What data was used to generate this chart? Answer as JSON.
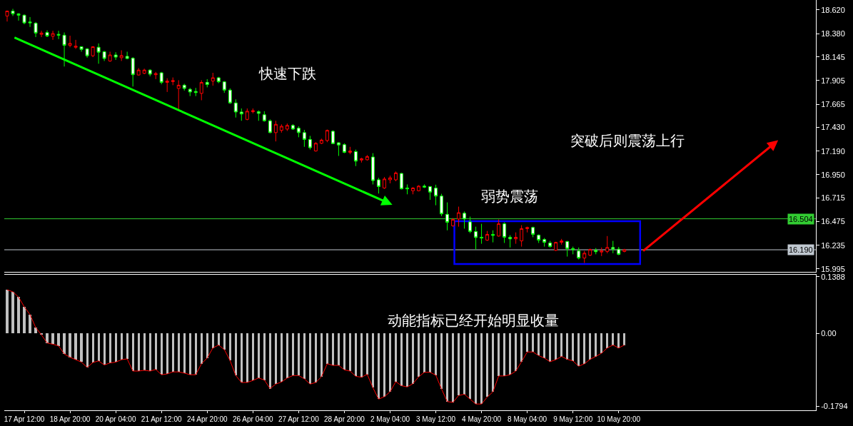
{
  "chart_data": [
    {
      "type": "candlestick",
      "categories": [
        null,
        null,
        null,
        null,
        null,
        null,
        null,
        null,
        null,
        null,
        null,
        null,
        null,
        null,
        null,
        null,
        null,
        null,
        null,
        null,
        null,
        null,
        null,
        null,
        null,
        null,
        null,
        null,
        null,
        null,
        null,
        null,
        null,
        null,
        null,
        null,
        null,
        null,
        null,
        null,
        null,
        null,
        null,
        null,
        null,
        null,
        null,
        null,
        null,
        null,
        null,
        null,
        null,
        null,
        null,
        null,
        null,
        null,
        null,
        null,
        null,
        null,
        null,
        null,
        null,
        null,
        null,
        null,
        null,
        null,
        null,
        null,
        null,
        null,
        null,
        null,
        null,
        null,
        null,
        null,
        null,
        null,
        null,
        null,
        null,
        null,
        null,
        null,
        null,
        null,
        null,
        null,
        null,
        null,
        null,
        null,
        null,
        null,
        null,
        null,
        null,
        null,
        null,
        null,
        null,
        null,
        null,
        null,
        null,
        null,
        null,
        null,
        null,
        null,
        null,
        null,
        null,
        null,
        null,
        null,
        null,
        null,
        null,
        null,
        null,
        null,
        null,
        null,
        null,
        null,
        null,
        null,
        null,
        null,
        null,
        null,
        null,
        null,
        null,
        null,
        null,
        null
      ],
      "ohlc": [
        [
          18.559,
          18.614,
          18.503,
          18.609
        ],
        [
          18.609,
          18.631,
          18.559,
          18.581
        ],
        [
          18.581,
          18.587,
          18.512,
          18.567
        ],
        [
          18.567,
          18.575,
          18.475,
          18.489
        ],
        [
          18.498,
          18.548,
          18.448,
          18.489
        ],
        [
          18.486,
          18.498,
          18.345,
          18.386
        ],
        [
          18.373,
          18.409,
          18.345,
          18.386
        ],
        [
          18.392,
          18.414,
          18.345,
          18.356
        ],
        [
          18.353,
          18.409,
          18.317,
          18.381
        ],
        [
          18.373,
          18.409,
          18.325,
          18.364
        ],
        [
          18.364,
          18.392,
          18.047,
          18.261
        ],
        [
          18.261,
          18.359,
          18.242,
          18.281
        ],
        [
          18.242,
          18.317,
          18.225,
          18.253
        ],
        [
          18.247,
          18.253,
          18.197,
          18.22
        ],
        [
          18.225,
          18.234,
          18.136,
          18.156
        ],
        [
          18.156,
          18.253,
          18.142,
          18.247
        ],
        [
          18.242,
          18.281,
          18.075,
          18.192
        ],
        [
          18.197,
          18.206,
          18.103,
          18.128
        ],
        [
          18.103,
          18.197,
          18.095,
          18.164
        ],
        [
          18.164,
          18.192,
          18.114,
          18.142
        ],
        [
          18.136,
          18.211,
          18.103,
          18.158
        ],
        [
          18.15,
          18.197,
          18.122,
          18.128
        ],
        [
          18.131,
          18.142,
          17.844,
          17.964
        ],
        [
          17.961,
          18.031,
          17.956,
          18.011
        ],
        [
          17.978,
          18.025,
          17.969,
          18.011
        ],
        [
          18.011,
          18.019,
          17.947,
          17.969
        ],
        [
          17.964,
          17.992,
          17.919,
          17.975
        ],
        [
          17.983,
          17.992,
          17.867,
          17.886
        ],
        [
          17.886,
          17.928,
          17.789,
          17.9
        ],
        [
          17.894,
          17.936,
          17.858,
          17.905
        ],
        [
          17.825,
          17.908,
          17.608,
          17.858
        ],
        [
          17.858,
          17.872,
          17.803,
          17.825
        ],
        [
          17.816,
          17.83,
          17.747,
          17.789
        ],
        [
          17.794,
          17.83,
          17.747,
          17.783
        ],
        [
          17.775,
          17.908,
          17.705,
          17.886
        ],
        [
          17.886,
          17.919,
          17.836,
          17.864
        ],
        [
          17.9,
          17.983,
          17.853,
          17.933
        ],
        [
          17.933,
          17.942,
          17.878,
          17.892
        ],
        [
          17.892,
          17.9,
          17.78,
          17.808
        ],
        [
          17.808,
          17.825,
          17.669,
          17.678
        ],
        [
          17.678,
          17.714,
          17.53,
          17.586
        ],
        [
          17.586,
          17.622,
          17.497,
          17.566
        ],
        [
          17.511,
          17.622,
          17.502,
          17.594
        ],
        [
          17.589,
          17.622,
          17.572,
          17.6
        ],
        [
          17.589,
          17.602,
          17.497,
          17.572
        ],
        [
          17.558,
          17.594,
          17.488,
          17.497
        ],
        [
          17.497,
          17.511,
          17.372,
          17.377
        ],
        [
          17.377,
          17.497,
          17.288,
          17.461
        ],
        [
          17.4,
          17.461,
          17.377,
          17.441
        ],
        [
          17.413,
          17.469,
          17.394,
          17.45
        ],
        [
          17.45,
          17.463,
          17.405,
          17.413
        ],
        [
          17.422,
          17.441,
          17.33,
          17.377
        ],
        [
          17.377,
          17.405,
          17.233,
          17.308
        ],
        [
          17.308,
          17.344,
          17.205,
          17.224
        ],
        [
          17.191,
          17.28,
          17.185,
          17.269
        ],
        [
          17.269,
          17.316,
          17.261,
          17.302
        ],
        [
          17.297,
          17.408,
          17.28,
          17.4
        ],
        [
          17.391,
          17.4,
          17.261,
          17.266
        ],
        [
          17.274,
          17.28,
          17.141,
          17.252
        ],
        [
          17.255,
          17.269,
          17.169,
          17.177
        ],
        [
          17.177,
          17.233,
          17.158,
          17.191
        ],
        [
          17.185,
          17.205,
          17.038,
          17.088
        ],
        [
          17.099,
          17.122,
          17.074,
          17.113
        ],
        [
          17.102,
          17.149,
          17.094,
          17.135
        ],
        [
          17.13,
          17.169,
          16.852,
          16.891
        ],
        [
          16.899,
          16.919,
          16.76,
          16.83
        ],
        [
          16.816,
          16.927,
          16.807,
          16.907
        ],
        [
          16.899,
          16.941,
          16.863,
          16.919
        ],
        [
          16.899,
          16.983,
          16.885,
          16.969
        ],
        [
          16.963,
          16.969,
          16.802,
          16.807
        ],
        [
          16.816,
          16.852,
          16.752,
          16.807
        ],
        [
          16.788,
          16.824,
          16.752,
          16.816
        ],
        [
          16.788,
          16.844,
          16.782,
          16.835
        ],
        [
          16.835,
          16.852,
          16.816,
          16.824
        ],
        [
          16.83,
          16.835,
          16.696,
          16.774
        ],
        [
          16.815,
          16.849,
          16.641,
          16.734
        ],
        [
          16.734,
          16.757,
          16.531,
          16.554
        ],
        [
          16.549,
          16.67,
          16.387,
          16.468
        ],
        [
          16.433,
          16.511,
          16.424,
          16.497
        ],
        [
          16.502,
          16.627,
          16.424,
          16.566
        ],
        [
          16.56,
          16.578,
          16.404,
          16.502
        ],
        [
          16.473,
          16.526,
          16.358,
          16.375
        ],
        [
          16.375,
          16.424,
          16.193,
          16.314
        ],
        [
          16.317,
          16.453,
          16.251,
          16.309
        ],
        [
          16.288,
          16.381,
          16.28,
          16.346
        ],
        [
          16.346,
          16.387,
          16.265,
          16.335
        ],
        [
          16.329,
          16.497,
          16.323,
          16.453
        ],
        [
          16.453,
          16.468,
          16.259,
          16.317
        ],
        [
          16.317,
          16.338,
          16.213,
          16.3
        ],
        [
          16.3,
          16.366,
          16.251,
          16.317
        ],
        [
          16.28,
          16.439,
          16.222,
          16.404
        ],
        [
          16.404,
          16.424,
          16.366,
          16.416
        ],
        [
          16.416,
          16.424,
          16.317,
          16.346
        ],
        [
          16.338,
          16.346,
          16.259,
          16.288
        ],
        [
          16.294,
          16.309,
          16.222,
          16.265
        ],
        [
          16.259,
          16.28,
          16.213,
          16.222
        ],
        [
          16.184,
          16.271,
          16.178,
          16.265
        ],
        [
          16.265,
          16.3,
          16.242,
          16.28
        ],
        [
          16.274,
          16.28,
          16.121,
          16.202
        ],
        [
          16.202,
          16.222,
          16.144,
          16.19
        ],
        [
          16.178,
          16.213,
          16.092,
          16.106
        ],
        [
          16.106,
          16.178,
          16.057,
          16.155
        ],
        [
          16.135,
          16.202,
          16.126,
          16.193
        ],
        [
          16.184,
          16.207,
          16.144,
          16.17
        ],
        [
          16.167,
          16.213,
          16.126,
          16.178
        ],
        [
          16.173,
          16.329,
          16.155,
          16.213
        ],
        [
          16.213,
          16.28,
          16.155,
          16.196
        ],
        [
          16.196,
          16.219,
          16.135,
          16.144
        ],
        [
          16.173,
          16.199,
          16.164,
          16.19
        ],
        null,
        null,
        null,
        null,
        null,
        null,
        null,
        null,
        null,
        null,
        null,
        null,
        null,
        null,
        null,
        null,
        null,
        null,
        null,
        null,
        null,
        null,
        null,
        null,
        null,
        null,
        null,
        null,
        null,
        null,
        null,
        null,
        null
      ],
      "ylim": [
        15.966,
        18.721
      ],
      "yticks": [
        {
          "value": 18.62,
          "label": "18.620"
        },
        {
          "value": 18.38,
          "label": "18.380"
        },
        18.145,
        17.905,
        17.665,
        {
          "value": 17.43,
          "label": "17.430"
        },
        {
          "value": 17.19,
          "label": "17.190"
        },
        {
          "value": 16.95,
          "label": "16.950"
        },
        16.715,
        16.475,
        16.235,
        15.995
      ],
      "tick_labels": "y",
      "ref_lines": [
        {
          "axis": "y",
          "value": 16.504,
          "label": "16.504",
          "color": "#32cd32"
        },
        {
          "axis": "y",
          "value": 16.19,
          "label": "16.190",
          "color": "#c0c8d0"
        }
      ],
      "annotations": [
        "快速下跌",
        "弱势震荡",
        "突破后则震荡上行"
      ]
    },
    {
      "type": "bar",
      "categories": [
        null,
        null,
        null,
        "17 Apr 12:00",
        null,
        null,
        null,
        null,
        null,
        null,
        null,
        "18 Apr 20:00",
        null,
        null,
        null,
        null,
        null,
        null,
        null,
        "20 Apr 04:00",
        null,
        null,
        null,
        null,
        null,
        null,
        null,
        "21 Apr 12:00",
        null,
        null,
        null,
        null,
        null,
        null,
        null,
        "24 Apr 20:00",
        null,
        null,
        null,
        null,
        null,
        null,
        null,
        "26 Apr 04:00",
        null,
        null,
        null,
        null,
        null,
        null,
        null,
        "27 Apr 12:00",
        null,
        null,
        null,
        null,
        null,
        null,
        null,
        "28 Apr 20:00",
        null,
        null,
        null,
        null,
        null,
        null,
        null,
        "2 May 04:00",
        null,
        null,
        null,
        null,
        null,
        null,
        null,
        "3 May 12:00",
        null,
        null,
        null,
        null,
        null,
        null,
        null,
        "4 May 20:00",
        null,
        null,
        null,
        null,
        null,
        null,
        null,
        "8 May 04:00",
        null,
        null,
        null,
        null,
        null,
        null,
        null,
        "9 May 12:00",
        null,
        null,
        null,
        null,
        null,
        null,
        null,
        "10 May 20:00",
        null
      ],
      "series": [
        {
          "type": "bar",
          "color": "#c0c0c0",
          "values": [
            0.107,
            0.102,
            0.089,
            0.065,
            0.046,
            0.014,
            -0.004,
            -0.024,
            -0.027,
            -0.031,
            -0.051,
            -0.059,
            -0.065,
            -0.071,
            -0.084,
            -0.072,
            -0.068,
            -0.078,
            -0.073,
            -0.071,
            -0.065,
            -0.063,
            -0.093,
            -0.093,
            -0.091,
            -0.093,
            -0.089,
            -0.102,
            -0.1,
            -0.095,
            -0.095,
            -0.098,
            -0.102,
            -0.102,
            -0.075,
            -0.061,
            -0.036,
            -0.029,
            -0.04,
            -0.067,
            -0.104,
            -0.121,
            -0.121,
            -0.116,
            -0.11,
            -0.115,
            -0.136,
            -0.125,
            -0.12,
            -0.11,
            -0.104,
            -0.104,
            -0.112,
            -0.125,
            -0.121,
            -0.107,
            -0.075,
            -0.079,
            -0.079,
            -0.09,
            -0.093,
            -0.106,
            -0.108,
            -0.101,
            -0.134,
            -0.162,
            -0.156,
            -0.144,
            -0.119,
            -0.129,
            -0.132,
            -0.124,
            -0.107,
            -0.096,
            -0.096,
            -0.103,
            -0.137,
            -0.168,
            -0.17,
            -0.153,
            -0.15,
            -0.162,
            -0.174,
            -0.174,
            -0.157,
            -0.144,
            -0.105,
            -0.105,
            -0.102,
            -0.093,
            -0.07,
            -0.046,
            -0.046,
            -0.055,
            -0.061,
            -0.07,
            -0.065,
            -0.057,
            -0.064,
            -0.068,
            -0.081,
            -0.075,
            -0.064,
            -0.057,
            -0.049,
            -0.036,
            -0.029,
            -0.036,
            -0.029
          ]
        },
        {
          "type": "line",
          "color": "#ff0000",
          "values": [
            0.107,
            0.102,
            0.089,
            0.065,
            0.046,
            0.014,
            -0.004,
            -0.024,
            -0.027,
            -0.031,
            -0.051,
            -0.059,
            -0.065,
            -0.071,
            -0.084,
            -0.072,
            -0.068,
            -0.078,
            -0.073,
            -0.071,
            -0.065,
            -0.063,
            -0.093,
            -0.093,
            -0.091,
            -0.093,
            -0.089,
            -0.102,
            -0.1,
            -0.095,
            -0.095,
            -0.098,
            -0.102,
            -0.102,
            -0.075,
            -0.061,
            -0.036,
            -0.029,
            -0.04,
            -0.067,
            -0.104,
            -0.121,
            -0.121,
            -0.116,
            -0.11,
            -0.115,
            -0.136,
            -0.125,
            -0.12,
            -0.11,
            -0.104,
            -0.104,
            -0.112,
            -0.125,
            -0.121,
            -0.107,
            -0.075,
            -0.079,
            -0.079,
            -0.09,
            -0.093,
            -0.106,
            -0.108,
            -0.101,
            -0.134,
            -0.162,
            -0.156,
            -0.144,
            -0.119,
            -0.129,
            -0.132,
            -0.124,
            -0.107,
            -0.096,
            -0.096,
            -0.103,
            -0.137,
            -0.168,
            -0.17,
            -0.153,
            -0.15,
            -0.162,
            -0.174,
            -0.174,
            -0.157,
            -0.144,
            -0.105,
            -0.105,
            -0.102,
            -0.093,
            -0.07,
            -0.046,
            -0.046,
            -0.055,
            -0.061,
            -0.07,
            -0.065,
            -0.057,
            -0.064,
            -0.068,
            -0.081,
            -0.075,
            -0.064,
            -0.057,
            -0.049,
            -0.036,
            -0.029,
            -0.036,
            -0.029
          ]
        }
      ],
      "ylim": [
        -0.1895,
        0.144
      ],
      "yticks": [
        0.1388,
        {
          "value": 0,
          "label": "0.00"
        },
        -0.1794
      ],
      "annotations": [
        "动能指标已经开始明显收量"
      ]
    }
  ]
}
